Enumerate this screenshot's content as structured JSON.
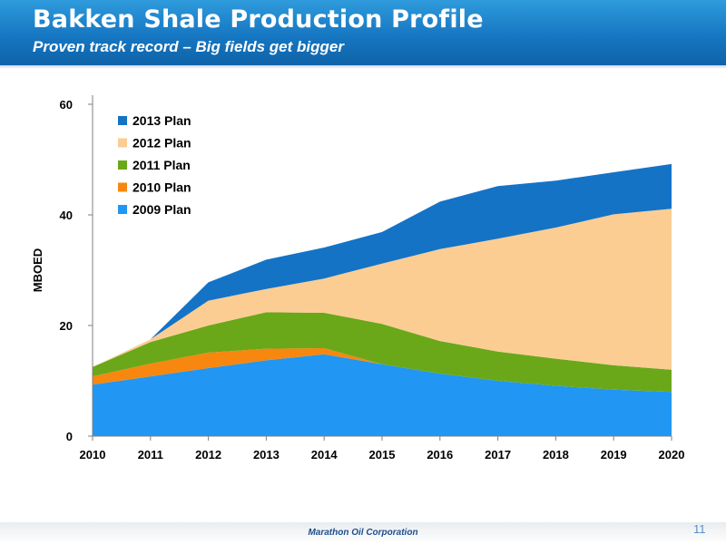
{
  "slide": {
    "title": "Bakken Shale Production Profile",
    "subtitle": "Proven track record – Big fields get bigger",
    "footer": "Marathon Oil Corporation",
    "page_number": "11"
  },
  "chart_data": {
    "type": "area",
    "stacked": true,
    "x": [
      2010,
      2011,
      2012,
      2013,
      2014,
      2015,
      2016,
      2017,
      2018,
      2019,
      2020
    ],
    "ylabel": "MBOED",
    "xlabel": "",
    "ylim": [
      0,
      60
    ],
    "yticks": [
      0,
      20,
      40,
      60
    ],
    "grid": false,
    "legend_position": "top-left",
    "series": [
      {
        "name": "2009 Plan",
        "color": "#2196f3",
        "values": [
          9.3,
          10.8,
          12.3,
          13.7,
          14.8,
          13.0,
          11.3,
          10.0,
          9.1,
          8.4,
          8.0
        ]
      },
      {
        "name": "2010 Plan",
        "color": "#f7870f",
        "values": [
          1.5,
          2.3,
          2.8,
          2.1,
          1.1,
          0,
          0,
          0,
          0,
          0,
          0
        ]
      },
      {
        "name": "2011 Plan",
        "color": "#6aa81a",
        "values": [
          1.7,
          3.9,
          4.9,
          6.6,
          6.4,
          7.3,
          5.9,
          5.3,
          4.9,
          4.4,
          4.0
        ]
      },
      {
        "name": "2012 Plan",
        "color": "#fbcd93",
        "values": [
          0,
          0.5,
          4.5,
          4.2,
          6.2,
          10.9,
          16.6,
          20.4,
          23.7,
          27.3,
          29.1
        ]
      },
      {
        "name": "2013 Plan",
        "color": "#1573c6",
        "values": [
          0,
          0,
          3.3,
          5.3,
          5.6,
          5.7,
          8.6,
          9.5,
          8.5,
          7.6,
          8.1
        ]
      }
    ]
  }
}
